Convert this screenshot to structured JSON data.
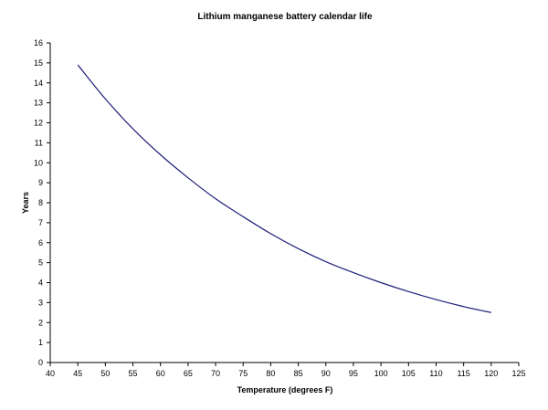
{
  "chart_data": {
    "type": "line",
    "title": "Lithium manganese battery calendar life",
    "xlabel": "Temperature (degrees F)",
    "ylabel": "Years",
    "xlim": [
      40,
      125
    ],
    "ylim": [
      0,
      16
    ],
    "xticks": [
      40,
      45,
      50,
      55,
      60,
      65,
      70,
      75,
      80,
      85,
      90,
      95,
      100,
      105,
      110,
      115,
      120,
      125
    ],
    "yticks": [
      0,
      1,
      2,
      3,
      4,
      5,
      6,
      7,
      8,
      9,
      10,
      11,
      12,
      13,
      14,
      15,
      16
    ],
    "grid": false,
    "legend": "none",
    "series": [
      {
        "color": "#1f1f7a",
        "x": [
          45,
          50,
          55,
          60,
          65,
          70,
          75,
          80,
          85,
          90,
          95,
          100,
          105,
          110,
          115,
          120
        ],
        "y": [
          14.9,
          13.2,
          11.7,
          10.4,
          9.25,
          8.2,
          7.3,
          6.45,
          5.7,
          5.05,
          4.5,
          4.0,
          3.55,
          3.15,
          2.8,
          2.5
        ]
      }
    ]
  }
}
